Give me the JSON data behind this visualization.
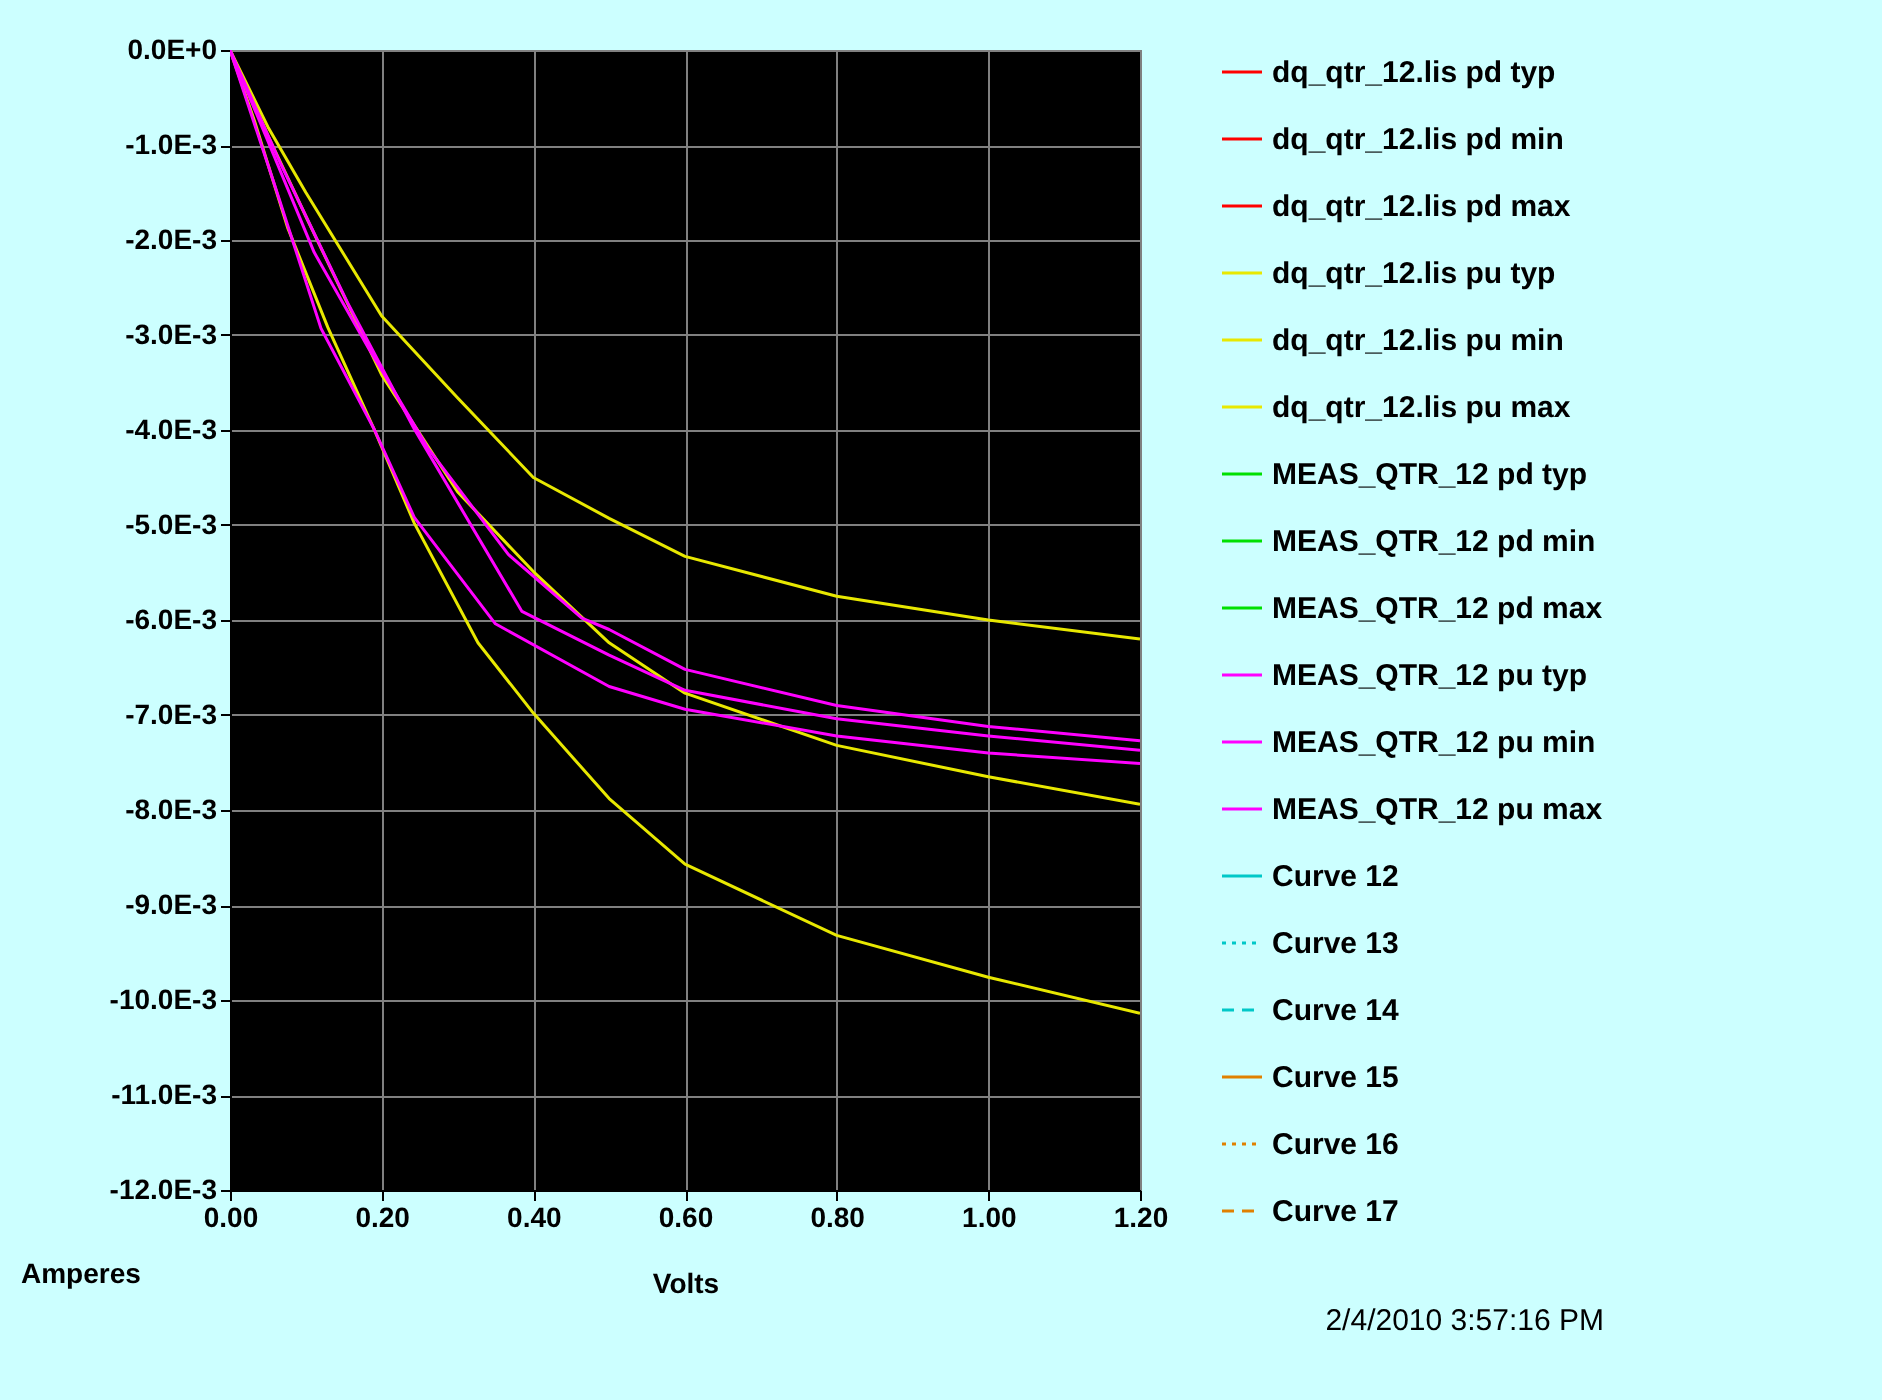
{
  "chart_data": {
    "type": "line",
    "xlabel": "Volts",
    "ylabel": "Amperes",
    "annotations": [
      "2/4/2010 3:57:16 PM"
    ],
    "xlim": [
      0,
      1.2
    ],
    "ylim": [
      -0.012,
      0
    ],
    "xticks": [
      {
        "value": 0,
        "label": "0.00"
      },
      {
        "value": 0.2,
        "label": "0.20"
      },
      {
        "value": 0.4,
        "label": "0.40"
      },
      {
        "value": 0.6,
        "label": "0.60"
      },
      {
        "value": 0.8,
        "label": "0.80"
      },
      {
        "value": 1,
        "label": "1.00"
      },
      {
        "value": 1.2,
        "label": "1.20"
      }
    ],
    "yticks": [
      {
        "value": 0,
        "label": "0.0E+0"
      },
      {
        "value": -0.001,
        "label": "-1.0E-3"
      },
      {
        "value": -0.002,
        "label": "-2.0E-3"
      },
      {
        "value": -0.003,
        "label": "-3.0E-3"
      },
      {
        "value": -0.004,
        "label": "-4.0E-3"
      },
      {
        "value": -0.005,
        "label": "-5.0E-3"
      },
      {
        "value": -0.006,
        "label": "-6.0E-3"
      },
      {
        "value": -0.007,
        "label": "-7.0E-3"
      },
      {
        "value": -0.008,
        "label": "-8.0E-3"
      },
      {
        "value": -0.009,
        "label": "-9.0E-3"
      },
      {
        "value": -0.01,
        "label": "-10.0E-3"
      },
      {
        "value": -0.011,
        "label": "-11.0E-3"
      },
      {
        "value": -0.012,
        "label": "-12.0E-3"
      }
    ],
    "grid": true,
    "legend": "right",
    "marker": "none",
    "series": [
      {
        "name": "dq_qtr_12.lis pd typ",
        "color": "#ff0000"
      },
      {
        "name": "dq_qtr_12.lis pd min",
        "color": "#ff0000"
      },
      {
        "name": "dq_qtr_12.lis pd max",
        "color": "#ff0000"
      },
      {
        "name": "dq_qtr_12.lis pu typ",
        "color": "#e8e800",
        "x": [
          0,
          0.05,
          0.1,
          0.2,
          0.3,
          0.4,
          0.5,
          0.6,
          0.8,
          1.0,
          1.2
        ],
        "values": [
          0,
          -0.0009,
          -0.00175,
          -0.00342,
          -0.00465,
          -0.00549,
          -0.00624,
          -0.00677,
          -0.00732,
          -0.00765,
          -0.00794
        ]
      },
      {
        "name": "dq_qtr_12.lis pu min",
        "color": "#e8e800",
        "x": [
          0,
          0.05,
          0.1,
          0.2,
          0.3,
          0.4,
          0.5,
          0.6,
          0.8,
          1.0,
          1.2
        ],
        "values": [
          0,
          -0.00081,
          -0.0015,
          -0.0028,
          -0.00366,
          -0.0045,
          -0.00493,
          -0.00533,
          -0.00575,
          -0.006,
          -0.0062
        ]
      },
      {
        "name": "dq_qtr_12.lis pu max",
        "color": "#e8e800",
        "x": [
          0,
          0.032,
          0.076,
          0.129,
          0.19,
          0.243,
          0.327,
          0.4,
          0.5,
          0.6,
          0.8,
          1.0,
          1.2
        ],
        "values": [
          0,
          -0.00074,
          -0.00187,
          -0.00292,
          -0.00399,
          -0.00498,
          -0.00624,
          -0.00698,
          -0.00788,
          -0.00857,
          -0.00932,
          -0.00976,
          -0.01014
        ]
      },
      {
        "name": "MEAS_QTR_12 pd typ",
        "color": "#00e000"
      },
      {
        "name": "MEAS_QTR_12 pd min",
        "color": "#00e000"
      },
      {
        "name": "MEAS_QTR_12 pd max",
        "color": "#00e000"
      },
      {
        "name": "MEAS_QTR_12 pu typ",
        "color": "#ff00ff",
        "x": [
          0,
          0.067,
          0.155,
          0.243,
          0.385,
          0.5,
          0.6,
          0.8,
          1.0,
          1.2
        ],
        "values": [
          0,
          -0.0012,
          -0.00266,
          -0.00399,
          -0.00591,
          -0.00637,
          -0.00674,
          -0.00704,
          -0.00722,
          -0.00737
        ]
      },
      {
        "name": "MEAS_QTR_12 pu min",
        "color": "#ff00ff",
        "x": [
          0,
          0.111,
          0.182,
          0.261,
          0.367,
          0.464,
          0.5,
          0.6,
          0.8,
          1.0,
          1.2
        ],
        "values": [
          0,
          -0.00213,
          -0.00313,
          -0.00419,
          -0.00531,
          -0.00598,
          -0.0061,
          -0.00652,
          -0.0069,
          -0.00712,
          -0.00727
        ]
      },
      {
        "name": "MEAS_QTR_12 pu max",
        "color": "#ff00ff",
        "x": [
          0,
          0.058,
          0.12,
          0.19,
          0.243,
          0.35,
          0.5,
          0.6,
          0.8,
          1.0,
          1.2
        ],
        "values": [
          0,
          -0.0014,
          -0.00293,
          -0.00399,
          -0.00492,
          -0.00604,
          -0.0067,
          -0.00694,
          -0.00722,
          -0.0074,
          -0.00751
        ]
      },
      {
        "name": "Curve 12",
        "color": "#00c8c8"
      },
      {
        "name": "Curve 13",
        "color": "#00c8c8",
        "line_style": "dotted"
      },
      {
        "name": "Curve 14",
        "color": "#00c8c8",
        "line_style": "dashed"
      },
      {
        "name": "Curve 15",
        "color": "#e08000"
      },
      {
        "name": "Curve 16",
        "color": "#e08000",
        "line_style": "dotted"
      },
      {
        "name": "Curve 17",
        "color": "#e08000",
        "line_style": "dashed"
      }
    ]
  }
}
